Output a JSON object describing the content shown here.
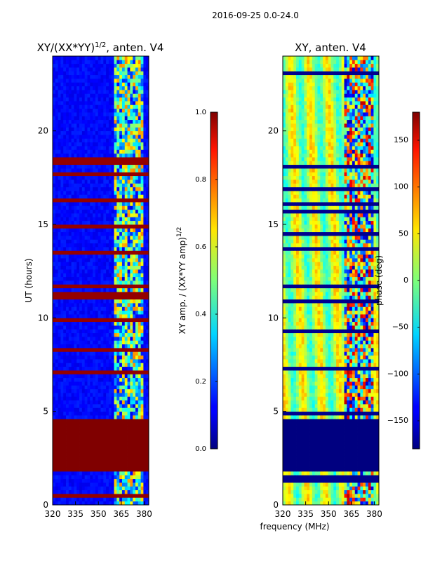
{
  "chart_data": {
    "suptitle": "2016-09-25 0.0-24.0",
    "xlabel_shared": "frequency (MHz)",
    "panels": [
      {
        "type": "heatmap",
        "title_main": "XY/(XX*YY)",
        "title_sup": "1/2",
        "title_tail": ", anten. V4",
        "ylabel": "UT (hours)",
        "xlim": [
          320,
          383
        ],
        "ylim": [
          0,
          24
        ],
        "xticks": [
          "320",
          "335",
          "350",
          "365",
          "380"
        ],
        "xtick_values": [
          320,
          335,
          350,
          365,
          380
        ],
        "yticks": [
          "0",
          "5",
          "10",
          "15",
          "20"
        ],
        "ytick_values": [
          0,
          5,
          10,
          15,
          20
        ],
        "active_band_mhz": [
          360,
          380
        ],
        "gap_hours": [
          1.8,
          4.7
        ],
        "gap_value": 1.0,
        "colorbar": {
          "label_main": "XY amp. / (XX*YY amp)",
          "label_sup": "1/2",
          "range": [
            0,
            1
          ],
          "ticks": [
            "0.0",
            "0.2",
            "0.4",
            "0.6",
            "0.8",
            "1.0"
          ],
          "tick_values": [
            0,
            0.2,
            0.4,
            0.6,
            0.8,
            1.0
          ]
        }
      },
      {
        "type": "heatmap",
        "title": "XY, anten. V4",
        "xlim": [
          320,
          383
        ],
        "ylim": [
          0,
          24
        ],
        "xticks": [
          "320",
          "335",
          "350",
          "365",
          "380"
        ],
        "xtick_values": [
          320,
          335,
          350,
          365,
          380
        ],
        "yticks": [
          "0",
          "5",
          "10",
          "15",
          "20"
        ],
        "ytick_values": [
          0,
          5,
          10,
          15,
          20
        ],
        "active_band_mhz": [
          360,
          380
        ],
        "gap_hours": [
          1.8,
          4.7
        ],
        "gap_value": -180,
        "colorbar": {
          "label": "phase (deg)",
          "range": [
            -180,
            180
          ],
          "ticks": [
            "−150",
            "−100",
            "−50",
            "0",
            "50",
            "100",
            "150"
          ],
          "tick_values": [
            -150,
            -100,
            -50,
            0,
            50,
            100,
            150
          ]
        }
      }
    ]
  }
}
